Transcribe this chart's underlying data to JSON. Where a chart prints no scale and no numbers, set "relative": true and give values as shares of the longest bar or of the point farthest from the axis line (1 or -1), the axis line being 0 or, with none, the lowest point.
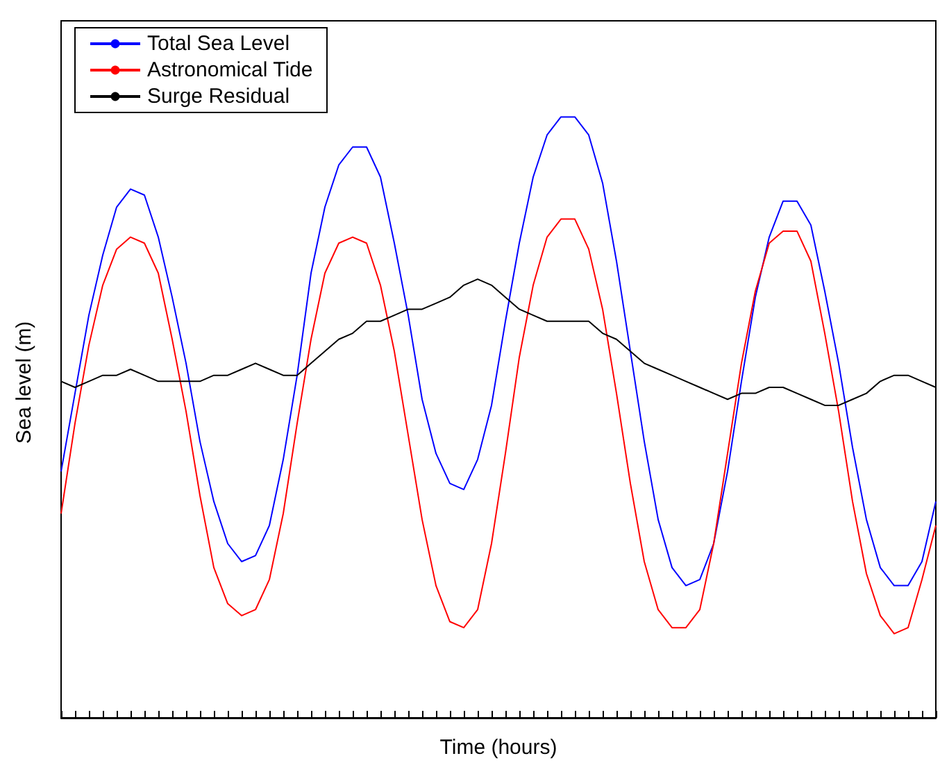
{
  "chart_data": {
    "type": "line",
    "relative": true,
    "xlabel": "Time (hours)",
    "ylabel": "Sea level (m)",
    "legend": "top left",
    "grid": false,
    "marker": "none",
    "line_style": "solid",
    "categories": [
      null,
      null,
      null,
      null,
      null,
      null,
      null,
      null,
      null,
      null,
      null,
      null,
      null,
      null,
      null,
      null,
      null,
      null,
      null,
      null,
      null,
      null,
      null,
      null,
      null,
      null,
      null,
      null,
      null,
      null,
      null,
      null,
      null,
      null,
      null,
      null,
      null,
      null,
      null,
      null,
      null,
      null,
      null,
      null,
      null,
      null,
      null,
      null,
      null,
      null,
      null,
      null,
      null,
      null,
      null,
      null,
      null,
      null,
      null,
      null,
      null,
      null,
      null,
      null
    ],
    "series": [
      {
        "name": "Total Sea Level",
        "color": "#0000ff",
        "values": [
          0.41,
          0.54,
          0.67,
          0.77,
          0.85,
          0.88,
          0.87,
          0.8,
          0.7,
          0.59,
          0.46,
          0.36,
          0.29,
          0.26,
          0.27,
          0.32,
          0.43,
          0.57,
          0.74,
          0.85,
          0.92,
          0.95,
          0.95,
          0.9,
          0.79,
          0.67,
          0.53,
          0.44,
          0.39,
          0.38,
          0.43,
          0.52,
          0.66,
          0.79,
          0.9,
          0.97,
          1.0,
          1.0,
          0.97,
          0.89,
          0.76,
          0.61,
          0.46,
          0.33,
          0.25,
          0.22,
          0.23,
          0.29,
          0.41,
          0.56,
          0.7,
          0.8,
          0.86,
          0.86,
          0.82,
          0.71,
          0.59,
          0.45,
          0.33,
          0.25,
          0.22,
          0.22,
          0.26,
          0.36
        ]
      },
      {
        "name": "Astronomical Tide",
        "color": "#ff0000",
        "values": [
          0.34,
          0.49,
          0.62,
          0.72,
          0.78,
          0.8,
          0.79,
          0.74,
          0.63,
          0.51,
          0.37,
          0.25,
          0.19,
          0.17,
          0.18,
          0.23,
          0.34,
          0.49,
          0.63,
          0.74,
          0.79,
          0.8,
          0.79,
          0.72,
          0.61,
          0.47,
          0.33,
          0.22,
          0.16,
          0.15,
          0.18,
          0.29,
          0.44,
          0.6,
          0.72,
          0.8,
          0.83,
          0.83,
          0.78,
          0.68,
          0.54,
          0.39,
          0.26,
          0.18,
          0.15,
          0.15,
          0.18,
          0.29,
          0.44,
          0.59,
          0.71,
          0.79,
          0.81,
          0.81,
          0.76,
          0.64,
          0.51,
          0.36,
          0.24,
          0.17,
          0.14,
          0.15,
          0.23,
          0.32
        ]
      },
      {
        "name": "Surge Residual",
        "color": "#000000",
        "values": [
          0.56,
          0.55,
          0.56,
          0.57,
          0.57,
          0.58,
          0.57,
          0.56,
          0.56,
          0.56,
          0.56,
          0.57,
          0.57,
          0.58,
          0.59,
          0.58,
          0.57,
          0.57,
          0.59,
          0.61,
          0.63,
          0.64,
          0.66,
          0.66,
          0.67,
          0.68,
          0.68,
          0.69,
          0.7,
          0.72,
          0.73,
          0.72,
          0.7,
          0.68,
          0.67,
          0.66,
          0.66,
          0.66,
          0.66,
          0.64,
          0.63,
          0.61,
          0.59,
          0.58,
          0.57,
          0.56,
          0.55,
          0.54,
          0.53,
          0.54,
          0.54,
          0.55,
          0.55,
          0.54,
          0.53,
          0.52,
          0.52,
          0.53,
          0.54,
          0.56,
          0.57,
          0.57,
          0.56,
          0.55
        ]
      }
    ]
  }
}
